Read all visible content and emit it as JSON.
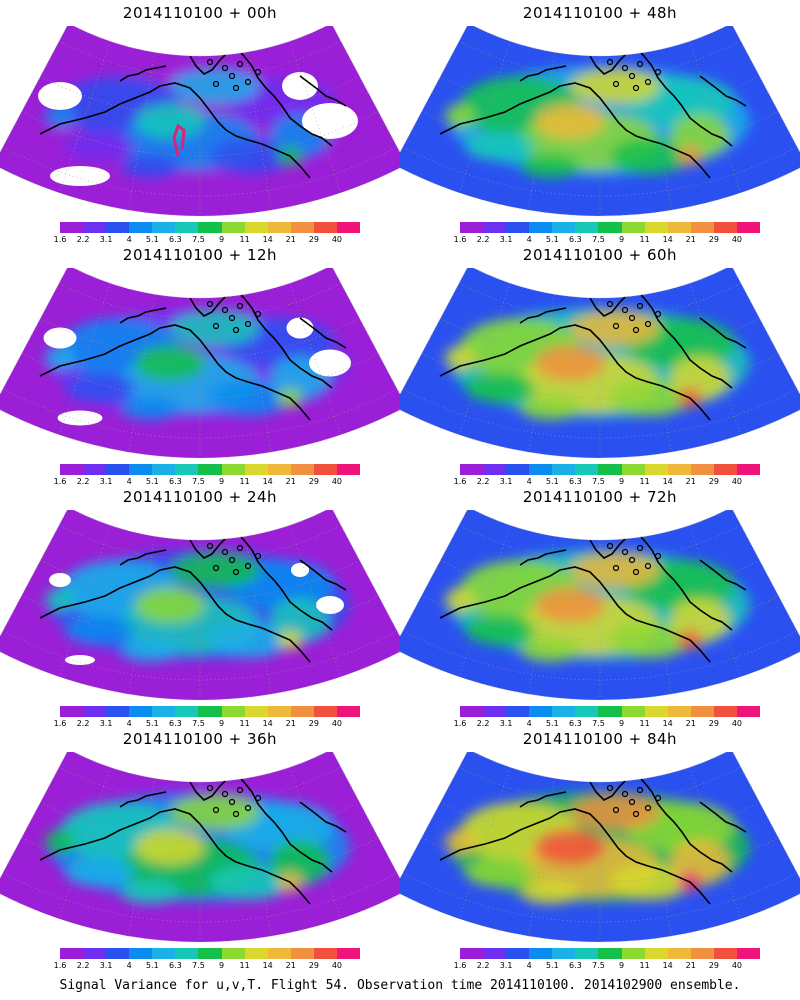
{
  "panels": [
    {
      "title": "2014110100 + 00h",
      "level": 0
    },
    {
      "title": "2014110100 + 48h",
      "level": 4
    },
    {
      "title": "2014110100 + 12h",
      "level": 1
    },
    {
      "title": "2014110100 + 60h",
      "level": 5
    },
    {
      "title": "2014110100 + 24h",
      "level": 2
    },
    {
      "title": "2014110100 + 72h",
      "level": 6
    },
    {
      "title": "2014110100 + 36h",
      "level": 3
    },
    {
      "title": "2014110100 + 84h",
      "level": 7
    }
  ],
  "colorbar": {
    "labels": [
      "1.6",
      "2.2",
      "3.1",
      "4",
      "5.1",
      "6.3",
      "7.5",
      "9",
      "11",
      "14",
      "21",
      "29",
      "40"
    ],
    "colors": [
      "#9a1fd6",
      "#6f2ff0",
      "#2b50f0",
      "#0a8cf0",
      "#1bb0e8",
      "#17c8b8",
      "#12c04a",
      "#8ed832",
      "#d8d82e",
      "#f0b83a",
      "#f09040",
      "#f0503c",
      "#f0147a"
    ]
  },
  "caption": "Signal Variance for u,v,T. Flight 54. Observation time 2014110100. 2014102900 ensemble."
}
